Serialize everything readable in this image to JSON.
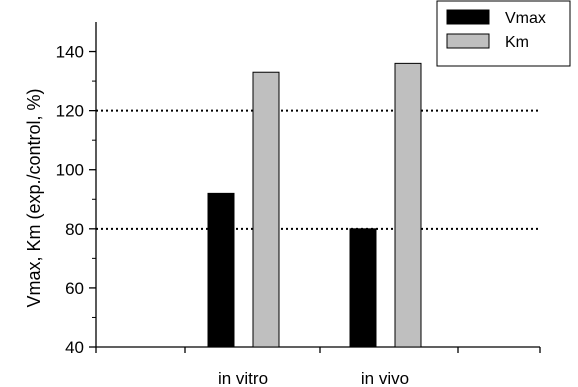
{
  "chart_data": {
    "type": "bar",
    "title": "",
    "xlabel": "",
    "ylabel": "Vmax, Km (exp./control, %)",
    "categories": [
      "in vitro",
      "in vivo"
    ],
    "series": [
      {
        "name": "Vmax",
        "color": "#000000",
        "values": [
          92,
          80
        ]
      },
      {
        "name": "Km",
        "color": "#bfbfbf",
        "values": [
          133,
          136
        ]
      }
    ],
    "ylim": [
      40,
      150
    ],
    "yticks": [
      40,
      60,
      80,
      100,
      120,
      140
    ],
    "reference_lines": [
      80,
      120
    ],
    "reference_line_style": "dotted",
    "grid": false,
    "legend_position": "top-right"
  }
}
